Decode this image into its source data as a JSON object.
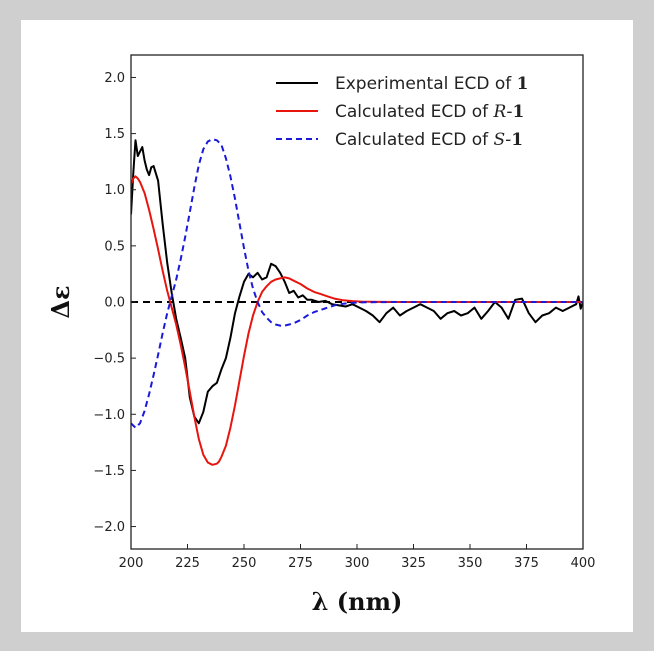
{
  "chart_data": {
    "type": "line",
    "title": "",
    "xlabel": "λ (nm)",
    "ylabel": "Δε",
    "xlim": [
      200,
      400
    ],
    "ylim": [
      -2.2,
      2.2
    ],
    "xticks": [
      200,
      225,
      250,
      275,
      300,
      325,
      350,
      375,
      400
    ],
    "yticks": [
      -2.0,
      -1.5,
      -1.0,
      -0.5,
      0.0,
      0.5,
      1.0,
      1.5,
      2.0
    ],
    "xtick_labels": [
      "200",
      "225",
      "250",
      "275",
      "300",
      "325",
      "350",
      "375",
      "400"
    ],
    "ytick_labels": [
      "−2.0",
      "−1.5",
      "−1.0",
      "−0.5",
      "0.0",
      "0.5",
      "1.0",
      "1.5",
      "2.0"
    ],
    "grid": false,
    "legend_position": "top-right",
    "baseline": {
      "y": 0,
      "style": "dashed",
      "color": "#000000"
    },
    "series": [
      {
        "name": "Experimental ECD of 1",
        "legend": {
          "prefix": "Experimental ECD of ",
          "italic": "",
          "bold": "1"
        },
        "color": "#000000",
        "style": "solid",
        "x": [
          200,
          201,
          202,
          203,
          204,
          205,
          206,
          207,
          208,
          209,
          210,
          212,
          214,
          216,
          218,
          220,
          222,
          224,
          226,
          228,
          230,
          232,
          234,
          236,
          238,
          240,
          242,
          244,
          246,
          248,
          250,
          252,
          254,
          256,
          258,
          260,
          262,
          264,
          266,
          268,
          270,
          272,
          274,
          276,
          278,
          280,
          283,
          286,
          289,
          292,
          295,
          298,
          301,
          304,
          307,
          310,
          313,
          316,
          319,
          322,
          325,
          328,
          331,
          334,
          337,
          340,
          343,
          346,
          349,
          352,
          355,
          358,
          361,
          364,
          367,
          370,
          373,
          376,
          379,
          382,
          385,
          388,
          391,
          394,
          397,
          398,
          399,
          400
        ],
        "y": [
          0.78,
          1.15,
          1.44,
          1.3,
          1.34,
          1.38,
          1.26,
          1.18,
          1.13,
          1.2,
          1.21,
          1.08,
          0.7,
          0.35,
          0.08,
          -0.15,
          -0.32,
          -0.5,
          -0.85,
          -1.02,
          -1.08,
          -0.98,
          -0.8,
          -0.75,
          -0.72,
          -0.6,
          -0.5,
          -0.32,
          -0.1,
          0.05,
          0.18,
          0.25,
          0.22,
          0.26,
          0.2,
          0.22,
          0.34,
          0.32,
          0.26,
          0.18,
          0.08,
          0.1,
          0.04,
          0.06,
          0.02,
          0.02,
          0.0,
          0.01,
          -0.02,
          -0.03,
          -0.04,
          -0.02,
          -0.05,
          -0.08,
          -0.12,
          -0.18,
          -0.1,
          -0.05,
          -0.12,
          -0.08,
          -0.05,
          -0.02,
          -0.05,
          -0.08,
          -0.15,
          -0.1,
          -0.08,
          -0.12,
          -0.1,
          -0.05,
          -0.15,
          -0.08,
          0.0,
          -0.05,
          -0.15,
          0.02,
          0.03,
          -0.1,
          -0.18,
          -0.12,
          -0.1,
          -0.05,
          -0.08,
          -0.05,
          -0.02,
          0.05,
          -0.06,
          0.0
        ]
      },
      {
        "name": "Calculated ECD of R-1",
        "legend": {
          "prefix": "Calculated ECD of ",
          "italic": "R",
          "bold": "1"
        },
        "color": "#e8150e",
        "style": "solid",
        "x": [
          200,
          201,
          202,
          203,
          204,
          206,
          208,
          210,
          212,
          214,
          216,
          218,
          220,
          222,
          224,
          226,
          228,
          230,
          232,
          234,
          236,
          238,
          239,
          240,
          242,
          244,
          246,
          248,
          250,
          252,
          254,
          256,
          258,
          260,
          262,
          264,
          266,
          268,
          270,
          272,
          275,
          278,
          281,
          284,
          287,
          290,
          294,
          298,
          302,
          306,
          310,
          320,
          340,
          360,
          380,
          400
        ],
        "y": [
          1.05,
          1.1,
          1.12,
          1.1,
          1.07,
          0.97,
          0.82,
          0.65,
          0.47,
          0.28,
          0.1,
          -0.05,
          -0.2,
          -0.38,
          -0.58,
          -0.8,
          -1.02,
          -1.22,
          -1.36,
          -1.43,
          -1.45,
          -1.44,
          -1.42,
          -1.38,
          -1.28,
          -1.12,
          -0.92,
          -0.7,
          -0.48,
          -0.28,
          -0.12,
          0.0,
          0.09,
          0.14,
          0.18,
          0.2,
          0.21,
          0.22,
          0.21,
          0.19,
          0.16,
          0.12,
          0.09,
          0.07,
          0.05,
          0.03,
          0.015,
          0.008,
          0.004,
          0.002,
          0.001,
          0.0,
          0.0,
          0.0,
          0.0,
          0.0
        ]
      },
      {
        "name": "Calculated ECD of S-1",
        "legend": {
          "prefix": "Calculated ECD of ",
          "italic": "S",
          "bold": "1"
        },
        "color": "#1a1adb",
        "style": "dashed",
        "x": [
          200,
          202,
          204,
          206,
          208,
          210,
          212,
          214,
          216,
          218,
          220,
          222,
          224,
          226,
          228,
          230,
          232,
          234,
          236,
          238,
          240,
          242,
          244,
          246,
          248,
          250,
          252,
          254,
          256,
          258,
          260,
          262,
          264,
          266,
          268,
          270,
          272,
          275,
          278,
          281,
          284,
          287,
          290,
          294,
          298,
          302,
          306,
          310,
          320,
          340,
          360,
          380,
          400
        ],
        "y": [
          -1.08,
          -1.12,
          -1.08,
          -0.97,
          -0.82,
          -0.65,
          -0.47,
          -0.28,
          -0.1,
          0.05,
          0.2,
          0.38,
          0.58,
          0.8,
          1.02,
          1.22,
          1.36,
          1.43,
          1.45,
          1.44,
          1.4,
          1.28,
          1.12,
          0.92,
          0.7,
          0.48,
          0.28,
          0.12,
          0.0,
          -0.09,
          -0.14,
          -0.18,
          -0.2,
          -0.21,
          -0.21,
          -0.2,
          -0.19,
          -0.16,
          -0.12,
          -0.09,
          -0.07,
          -0.05,
          -0.03,
          -0.015,
          -0.008,
          -0.004,
          -0.002,
          -0.001,
          0.0,
          0.0,
          0.0,
          0.0,
          0.0
        ]
      }
    ]
  }
}
